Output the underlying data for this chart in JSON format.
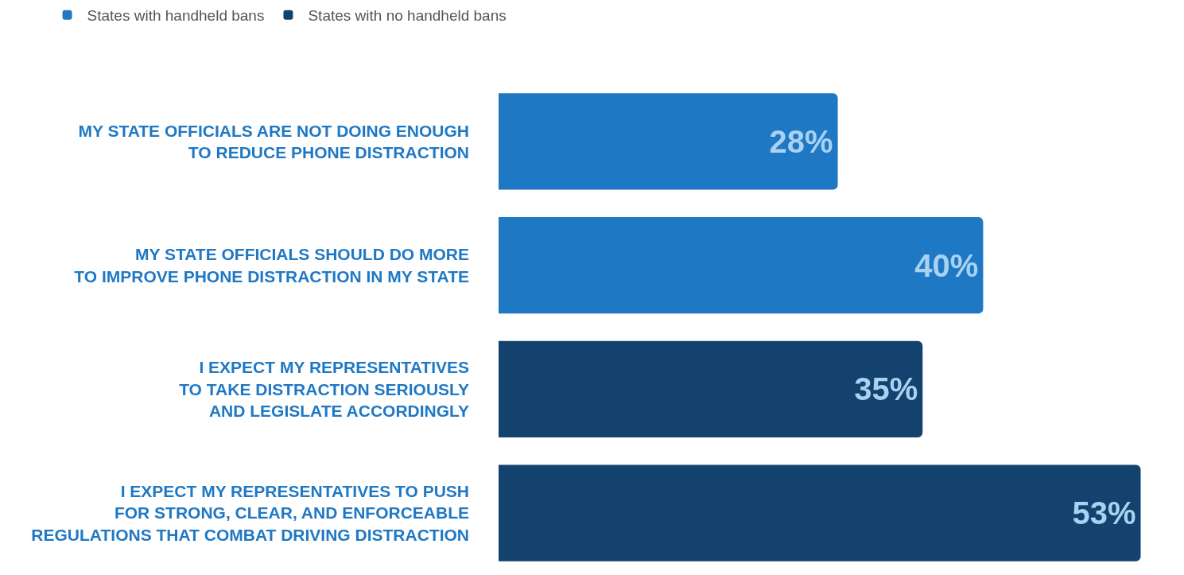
{
  "chart_data": {
    "type": "bar",
    "orientation": "horizontal",
    "legend": "top left",
    "categories": [
      "MY STATE OFFICIALS ARE NOT DOING ENOUGH\nTO REDUCE PHONE DISTRACTION",
      "MY STATE OFFICIALS SHOULD DO MORE\nTO IMPROVE PHONE DISTRACTION IN MY STATE",
      "I EXPECT MY REPRESENTATIVES\nTO TAKE DISTRACTION SERIOUSLY\nAND LEGISLATE ACCORDINGLY",
      "I EXPECT MY REPRESENTATIVES TO PUSH\nFOR STRONG, CLEAR, AND ENFORCEABLE\nREGULATIONS THAT COMBAT DRIVING DISTRACTION"
    ],
    "series": [
      {
        "name": "States with handheld bans",
        "color": "#1f78c4",
        "values": [
          28,
          40,
          null,
          null
        ],
        "value_labels": [
          "28%",
          "40%",
          null,
          null
        ]
      },
      {
        "name": "States with no handheld bans",
        "color": "#13426f",
        "values": [
          null,
          null,
          35,
          53
        ],
        "value_labels": [
          null,
          null,
          "35%",
          "53%"
        ]
      }
    ]
  }
}
